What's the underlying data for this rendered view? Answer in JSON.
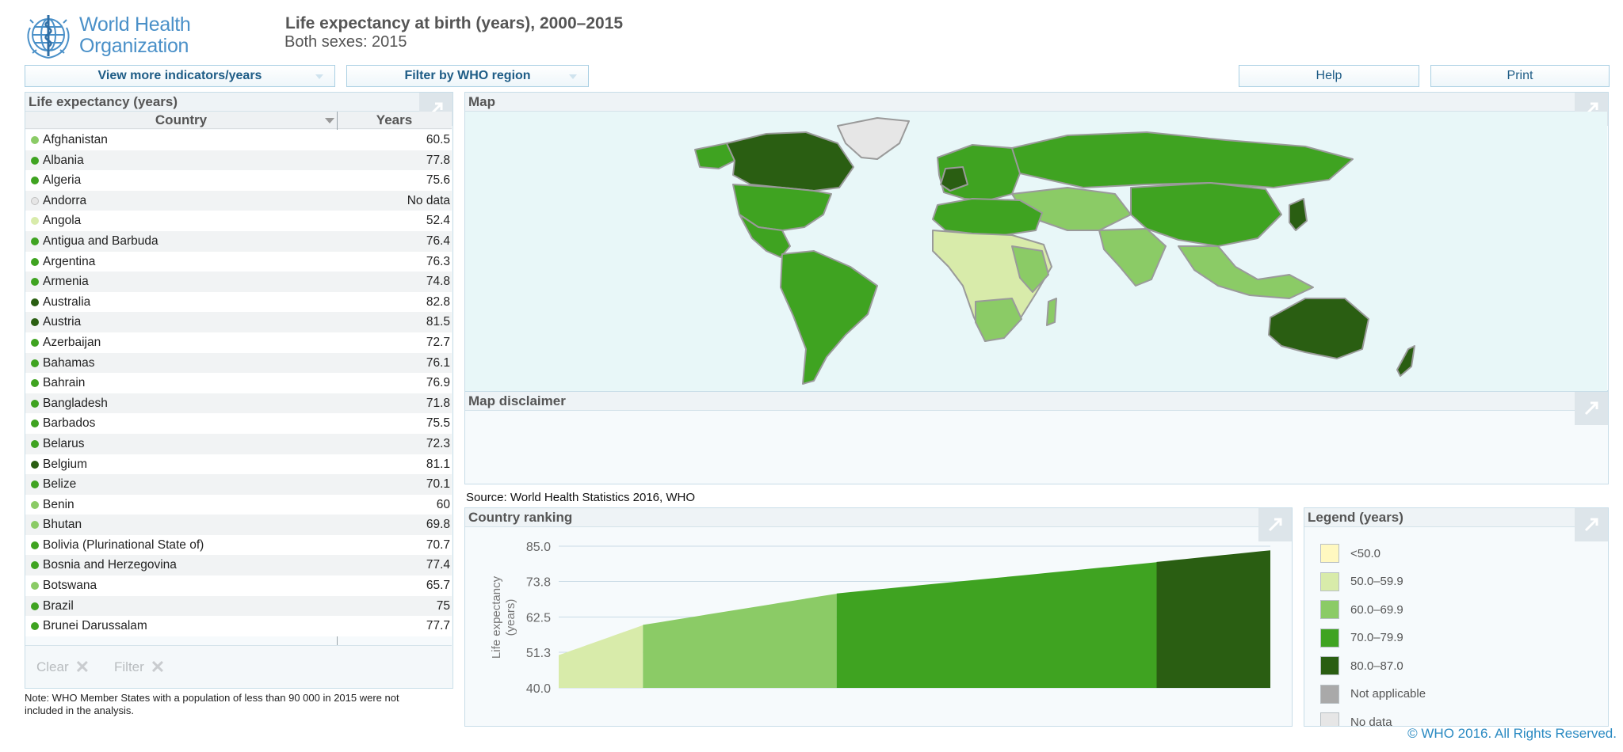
{
  "header": {
    "logo_line1": "World Health",
    "logo_line2": "Organization",
    "title": "Life expectancy at birth (years), 2000–2015",
    "subtitle": "Both sexes: 2015"
  },
  "toolbar": {
    "indicators_label": "View more indicators/years",
    "region_label": "Filter by WHO region",
    "help_label": "Help",
    "print_label": "Print"
  },
  "table_panel": {
    "title": "Life expectancy (years)",
    "col_country": "Country",
    "col_years": "Years",
    "clear_label": "Clear",
    "filter_label": "Filter",
    "rows": [
      {
        "country": "Afghanistan",
        "years": "60.5"
      },
      {
        "country": "Albania",
        "years": "77.8"
      },
      {
        "country": "Algeria",
        "years": "75.6"
      },
      {
        "country": "Andorra",
        "years": "No data"
      },
      {
        "country": "Angola",
        "years": "52.4"
      },
      {
        "country": "Antigua and Barbuda",
        "years": "76.4"
      },
      {
        "country": "Argentina",
        "years": "76.3"
      },
      {
        "country": "Armenia",
        "years": "74.8"
      },
      {
        "country": "Australia",
        "years": "82.8"
      },
      {
        "country": "Austria",
        "years": "81.5"
      },
      {
        "country": "Azerbaijan",
        "years": "72.7"
      },
      {
        "country": "Bahamas",
        "years": "76.1"
      },
      {
        "country": "Bahrain",
        "years": "76.9"
      },
      {
        "country": "Bangladesh",
        "years": "71.8"
      },
      {
        "country": "Barbados",
        "years": "75.5"
      },
      {
        "country": "Belarus",
        "years": "72.3"
      },
      {
        "country": "Belgium",
        "years": "81.1"
      },
      {
        "country": "Belize",
        "years": "70.1"
      },
      {
        "country": "Benin",
        "years": "60"
      },
      {
        "country": "Bhutan",
        "years": "69.8"
      },
      {
        "country": "Bolivia (Plurinational State of)",
        "years": "70.7"
      },
      {
        "country": "Bosnia and Herzegovina",
        "years": "77.4"
      },
      {
        "country": "Botswana",
        "years": "65.7"
      },
      {
        "country": "Brazil",
        "years": "75"
      },
      {
        "country": "Brunei Darussalam",
        "years": "77.7"
      }
    ],
    "note": "Note: WHO Member States with a population of less than 90 000 in 2015 were not included in the analysis."
  },
  "map_panel": {
    "title": "Map"
  },
  "disclaimer_panel": {
    "title": "Map disclaimer"
  },
  "source_text": "Source: World Health Statistics 2016, WHO",
  "ranking_panel": {
    "title": "Country ranking"
  },
  "legend_panel": {
    "title": "Legend (years)",
    "items": [
      {
        "label": "<50.0",
        "color": "#fff8c0"
      },
      {
        "label": "50.0–59.9",
        "color": "#d8ebaa"
      },
      {
        "label": "60.0–69.9",
        "color": "#8bcb66"
      },
      {
        "label": "70.0–79.9",
        "color": "#3fa321"
      },
      {
        "label": "80.0–87.0",
        "color": "#2a5e12"
      },
      {
        "label": "Not applicable",
        "color": "#a9a9a9"
      },
      {
        "label": "No data",
        "color": "#e6e6e6"
      }
    ]
  },
  "chart_data": {
    "type": "area",
    "title": "",
    "xlabel": "",
    "ylabel": "Life expectancy (years)",
    "ylim": [
      40.0,
      85.0
    ],
    "yticks": [
      "85.0",
      "73.8",
      "62.5",
      "51.3",
      "40.0"
    ],
    "grid": true,
    "bands": [
      {
        "name": "50.0–59.9",
        "from_value": 50.4,
        "to_value": 59.9,
        "count": 20,
        "color": "#d8ebaa"
      },
      {
        "name": "60.0–69.9",
        "from_value": 60.0,
        "to_value": 69.9,
        "count": 46,
        "color": "#8bcb66"
      },
      {
        "name": "70.0–79.9",
        "from_value": 70.0,
        "to_value": 79.9,
        "count": 76,
        "color": "#3fa321"
      },
      {
        "name": "80.0–87.0",
        "from_value": 80.0,
        "to_value": 83.7,
        "count": 27,
        "color": "#2a5e12"
      }
    ]
  },
  "footer": {
    "copyright": "© WHO 2016. All Rights Reserved."
  }
}
